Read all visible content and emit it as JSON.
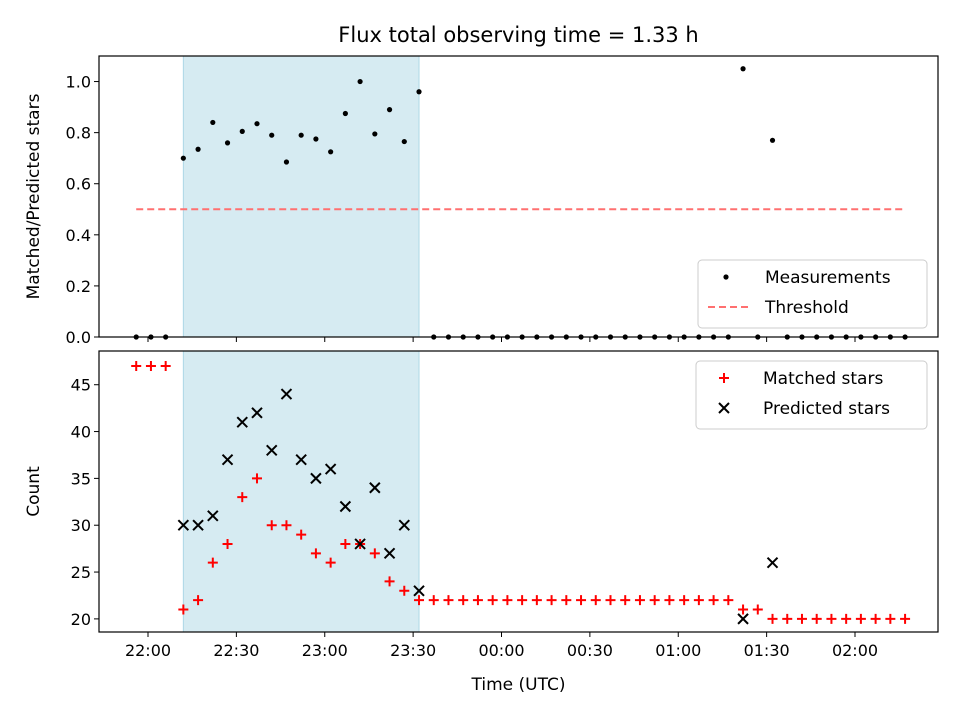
{
  "chart_data": [
    {
      "panel": "top",
      "type": "scatter",
      "title": "Flux total observing time = 1.33 h",
      "ylabel": "Matched/Predicted stars",
      "xlabel": "",
      "ylim": [
        0,
        1.1
      ],
      "yticks": [
        "0.0",
        "0.2",
        "0.4",
        "0.6",
        "0.8",
        "1.0"
      ],
      "grid": false,
      "legend_position": "lower-right",
      "highlight_span": {
        "start": "22:12",
        "end": "23:32",
        "color": "#add8e6"
      },
      "series": [
        {
          "name": "Measurements",
          "marker": "dot",
          "color": "#000000",
          "points": [
            [
              "21:56",
              0
            ],
            [
              "22:01",
              0
            ],
            [
              "22:06",
              0
            ],
            [
              "22:12",
              0.7
            ],
            [
              "22:17",
              0.735
            ],
            [
              "22:22",
              0.84
            ],
            [
              "22:27",
              0.76
            ],
            [
              "22:32",
              0.805
            ],
            [
              "22:37",
              0.835
            ],
            [
              "22:42",
              0.79
            ],
            [
              "22:47",
              0.685
            ],
            [
              "22:52",
              0.79
            ],
            [
              "22:57",
              0.775
            ],
            [
              "23:02",
              0.725
            ],
            [
              "23:07",
              0.875
            ],
            [
              "23:12",
              1.0
            ],
            [
              "23:17",
              0.795
            ],
            [
              "23:22",
              0.89
            ],
            [
              "23:27",
              0.765
            ],
            [
              "23:32",
              0.96
            ],
            [
              "23:37",
              0
            ],
            [
              "23:42",
              0
            ],
            [
              "23:47",
              0
            ],
            [
              "23:52",
              0
            ],
            [
              "23:57",
              0
            ],
            [
              "00:02",
              0
            ],
            [
              "00:07",
              0
            ],
            [
              "00:12",
              0
            ],
            [
              "00:17",
              0
            ],
            [
              "00:22",
              0
            ],
            [
              "00:27",
              0
            ],
            [
              "00:32",
              0
            ],
            [
              "00:37",
              0
            ],
            [
              "00:42",
              0
            ],
            [
              "00:47",
              0
            ],
            [
              "00:52",
              0
            ],
            [
              "00:57",
              0
            ],
            [
              "01:02",
              0
            ],
            [
              "01:07",
              0
            ],
            [
              "01:12",
              0
            ],
            [
              "01:17",
              0
            ],
            [
              "01:22",
              1.05
            ],
            [
              "01:27",
              0
            ],
            [
              "01:32",
              0.77
            ],
            [
              "01:37",
              0
            ],
            [
              "01:42",
              0
            ],
            [
              "01:47",
              0
            ],
            [
              "01:52",
              0
            ],
            [
              "01:57",
              0
            ],
            [
              "02:02",
              0
            ],
            [
              "02:07",
              0
            ],
            [
              "02:12",
              0
            ],
            [
              "02:17",
              0
            ]
          ]
        },
        {
          "name": "Threshold",
          "type": "dashed-line",
          "color": "#ff7070",
          "points": [
            [
              "21:56",
              0.5
            ],
            [
              "02:17",
              0.5
            ]
          ]
        }
      ]
    },
    {
      "panel": "bottom",
      "type": "scatter",
      "xlabel": "Time (UTC)",
      "ylabel": "Count",
      "ylim": [
        18.6,
        48.6
      ],
      "yticks": [
        "20",
        "25",
        "30",
        "35",
        "40",
        "45"
      ],
      "xticks": [
        "22:00",
        "22:30",
        "23:00",
        "23:30",
        "00:00",
        "00:30",
        "01:00",
        "01:30",
        "02:00"
      ],
      "grid": false,
      "legend_position": "upper-right",
      "highlight_span": {
        "start": "22:12",
        "end": "23:32",
        "color": "#add8e6"
      },
      "series": [
        {
          "name": "Matched stars",
          "marker": "plus",
          "color": "#ff0000",
          "points": [
            [
              "21:56",
              47
            ],
            [
              "22:01",
              47
            ],
            [
              "22:06",
              47
            ],
            [
              "22:12",
              21
            ],
            [
              "22:17",
              22
            ],
            [
              "22:22",
              26
            ],
            [
              "22:27",
              28
            ],
            [
              "22:32",
              33
            ],
            [
              "22:37",
              35
            ],
            [
              "22:42",
              30
            ],
            [
              "22:47",
              30
            ],
            [
              "22:52",
              29
            ],
            [
              "22:57",
              27
            ],
            [
              "23:02",
              26
            ],
            [
              "23:07",
              28
            ],
            [
              "23:12",
              28
            ],
            [
              "23:17",
              27
            ],
            [
              "23:22",
              24
            ],
            [
              "23:27",
              23
            ],
            [
              "23:32",
              22
            ],
            [
              "23:37",
              22
            ],
            [
              "23:42",
              22
            ],
            [
              "23:47",
              22
            ],
            [
              "23:52",
              22
            ],
            [
              "23:57",
              22
            ],
            [
              "00:02",
              22
            ],
            [
              "00:07",
              22
            ],
            [
              "00:12",
              22
            ],
            [
              "00:17",
              22
            ],
            [
              "00:22",
              22
            ],
            [
              "00:27",
              22
            ],
            [
              "00:32",
              22
            ],
            [
              "00:37",
              22
            ],
            [
              "00:42",
              22
            ],
            [
              "00:47",
              22
            ],
            [
              "00:52",
              22
            ],
            [
              "00:57",
              22
            ],
            [
              "01:02",
              22
            ],
            [
              "01:07",
              22
            ],
            [
              "01:12",
              22
            ],
            [
              "01:17",
              22
            ],
            [
              "01:22",
              21
            ],
            [
              "01:27",
              21
            ],
            [
              "01:32",
              20
            ],
            [
              "01:37",
              20
            ],
            [
              "01:42",
              20
            ],
            [
              "01:47",
              20
            ],
            [
              "01:52",
              20
            ],
            [
              "01:57",
              20
            ],
            [
              "02:02",
              20
            ],
            [
              "02:07",
              20
            ],
            [
              "02:12",
              20
            ],
            [
              "02:17",
              20
            ]
          ]
        },
        {
          "name": "Predicted stars",
          "marker": "x",
          "color": "#000000",
          "points": [
            [
              "22:12",
              30
            ],
            [
              "22:17",
              30
            ],
            [
              "22:22",
              31
            ],
            [
              "22:27",
              37
            ],
            [
              "22:32",
              41
            ],
            [
              "22:37",
              42
            ],
            [
              "22:42",
              38
            ],
            [
              "22:47",
              44
            ],
            [
              "22:52",
              37
            ],
            [
              "22:57",
              35
            ],
            [
              "23:02",
              36
            ],
            [
              "23:07",
              32
            ],
            [
              "23:12",
              28
            ],
            [
              "23:17",
              34
            ],
            [
              "23:22",
              27
            ],
            [
              "23:27",
              30
            ],
            [
              "23:32",
              23
            ],
            [
              "01:22",
              20
            ],
            [
              "01:32",
              26
            ]
          ]
        }
      ]
    }
  ]
}
